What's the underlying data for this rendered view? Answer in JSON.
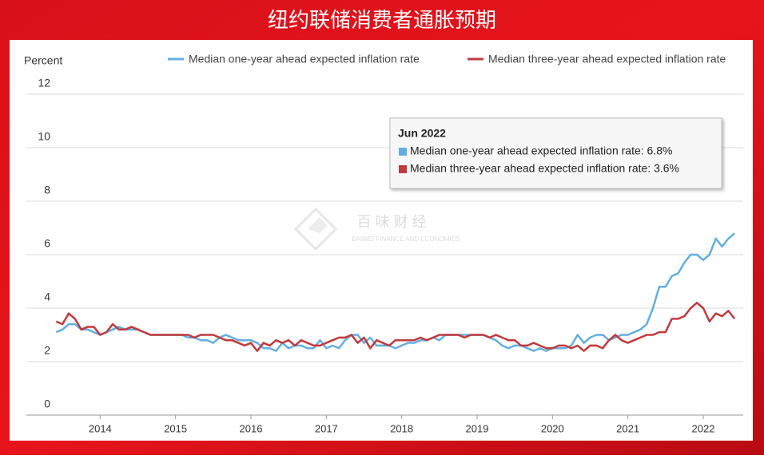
{
  "chart_data": {
    "type": "line",
    "title": "纽约联储消费者通胀预期",
    "y_label": "Percent",
    "x": [
      "2013-06",
      "2013-07",
      "2013-08",
      "2013-09",
      "2013-10",
      "2013-11",
      "2013-12",
      "2014-01",
      "2014-02",
      "2014-03",
      "2014-04",
      "2014-05",
      "2014-06",
      "2014-07",
      "2014-08",
      "2014-09",
      "2014-10",
      "2014-11",
      "2014-12",
      "2015-01",
      "2015-02",
      "2015-03",
      "2015-04",
      "2015-05",
      "2015-06",
      "2015-07",
      "2015-08",
      "2015-09",
      "2015-10",
      "2015-11",
      "2015-12",
      "2016-01",
      "2016-02",
      "2016-03",
      "2016-04",
      "2016-05",
      "2016-06",
      "2016-07",
      "2016-08",
      "2016-09",
      "2016-10",
      "2016-11",
      "2016-12",
      "2017-01",
      "2017-02",
      "2017-03",
      "2017-04",
      "2017-05",
      "2017-06",
      "2017-07",
      "2017-08",
      "2017-09",
      "2017-10",
      "2017-11",
      "2017-12",
      "2018-01",
      "2018-02",
      "2018-03",
      "2018-04",
      "2018-05",
      "2018-06",
      "2018-07",
      "2018-08",
      "2018-09",
      "2018-10",
      "2018-11",
      "2018-12",
      "2019-01",
      "2019-02",
      "2019-03",
      "2019-04",
      "2019-05",
      "2019-06",
      "2019-07",
      "2019-08",
      "2019-09",
      "2019-10",
      "2019-11",
      "2019-12",
      "2020-01",
      "2020-02",
      "2020-03",
      "2020-04",
      "2020-05",
      "2020-06",
      "2020-07",
      "2020-08",
      "2020-09",
      "2020-10",
      "2020-11",
      "2020-12",
      "2021-01",
      "2021-02",
      "2021-03",
      "2021-04",
      "2021-05",
      "2021-06",
      "2021-07",
      "2021-08",
      "2021-09",
      "2021-10",
      "2021-11",
      "2021-12",
      "2022-01",
      "2022-02",
      "2022-03",
      "2022-04",
      "2022-05",
      "2022-06"
    ],
    "series": [
      {
        "name": "Median one-year ahead expected inflation rate",
        "color": "#62aee3",
        "values": [
          3.1,
          3.2,
          3.4,
          3.4,
          3.2,
          3.2,
          3.1,
          3.0,
          3.1,
          3.2,
          3.3,
          3.2,
          3.2,
          3.2,
          3.1,
          3.0,
          3.0,
          3.0,
          3.0,
          3.0,
          3.0,
          2.9,
          2.9,
          2.8,
          2.8,
          2.7,
          2.9,
          3.0,
          2.9,
          2.8,
          2.8,
          2.8,
          2.7,
          2.5,
          2.5,
          2.4,
          2.7,
          2.5,
          2.6,
          2.6,
          2.5,
          2.5,
          2.8,
          2.5,
          2.6,
          2.5,
          2.8,
          3.0,
          3.0,
          2.7,
          2.9,
          2.6,
          2.6,
          2.6,
          2.5,
          2.6,
          2.7,
          2.7,
          2.8,
          2.8,
          2.9,
          2.8,
          3.0,
          3.0,
          3.0,
          3.0,
          3.0,
          3.0,
          3.0,
          2.9,
          2.8,
          2.6,
          2.5,
          2.6,
          2.6,
          2.5,
          2.4,
          2.5,
          2.4,
          2.5,
          2.5,
          2.5,
          2.6,
          3.0,
          2.7,
          2.9,
          3.0,
          3.0,
          2.8,
          2.9,
          3.0,
          3.0,
          3.1,
          3.2,
          3.4,
          4.0,
          4.8,
          4.8,
          5.2,
          5.3,
          5.7,
          6.0,
          6.0,
          5.8,
          6.0,
          6.6,
          6.3,
          6.6,
          6.8
        ]
      },
      {
        "name": "Median three-year ahead expected inflation rate",
        "color": "#c0393b",
        "values": [
          3.5,
          3.4,
          3.8,
          3.6,
          3.2,
          3.3,
          3.3,
          3.0,
          3.1,
          3.4,
          3.2,
          3.2,
          3.3,
          3.2,
          3.1,
          3.0,
          3.0,
          3.0,
          3.0,
          3.0,
          3.0,
          3.0,
          2.9,
          3.0,
          3.0,
          3.0,
          2.9,
          2.8,
          2.8,
          2.7,
          2.6,
          2.7,
          2.4,
          2.7,
          2.6,
          2.8,
          2.7,
          2.8,
          2.6,
          2.8,
          2.7,
          2.6,
          2.6,
          2.7,
          2.8,
          2.9,
          2.9,
          3.0,
          2.7,
          2.9,
          2.5,
          2.8,
          2.7,
          2.6,
          2.8,
          2.8,
          2.8,
          2.8,
          2.9,
          2.8,
          2.9,
          3.0,
          3.0,
          3.0,
          3.0,
          2.9,
          3.0,
          3.0,
          3.0,
          2.9,
          3.0,
          2.9,
          2.8,
          2.8,
          2.6,
          2.6,
          2.7,
          2.6,
          2.5,
          2.5,
          2.6,
          2.6,
          2.5,
          2.6,
          2.4,
          2.6,
          2.6,
          2.5,
          2.8,
          3.0,
          2.8,
          2.7,
          2.8,
          2.9,
          3.0,
          3.0,
          3.1,
          3.1,
          3.6,
          3.6,
          3.7,
          4.0,
          4.2,
          4.0,
          3.5,
          3.8,
          3.7,
          3.9,
          3.6
        ]
      }
    ],
    "xlim": [
      "2013-01",
      "2022-08"
    ],
    "xticks": [
      {
        "value": "2014-01",
        "label": "2014"
      },
      {
        "value": "2015-01",
        "label": "2015"
      },
      {
        "value": "2016-01",
        "label": "2016"
      },
      {
        "value": "2017-01",
        "label": "2017"
      },
      {
        "value": "2018-01",
        "label": "2018"
      },
      {
        "value": "2019-01",
        "label": "2019"
      },
      {
        "value": "2020-01",
        "label": "2020"
      },
      {
        "value": "2021-01",
        "label": "2021"
      },
      {
        "value": "2022-01",
        "label": "2022"
      }
    ],
    "ylim": [
      0,
      12
    ],
    "yticks": [
      0,
      2,
      4,
      6,
      8,
      10,
      12
    ],
    "grid": true,
    "tooltip": {
      "title": "Jun 2022",
      "items": [
        "Median one-year ahead expected inflation rate: 6.8%",
        "Median three-year ahead expected inflation rate: 3.6%"
      ]
    },
    "watermark": {
      "text": "百 味 财 经",
      "subtext": "BAIWEI FINANCE AND ECONOMICS"
    }
  }
}
